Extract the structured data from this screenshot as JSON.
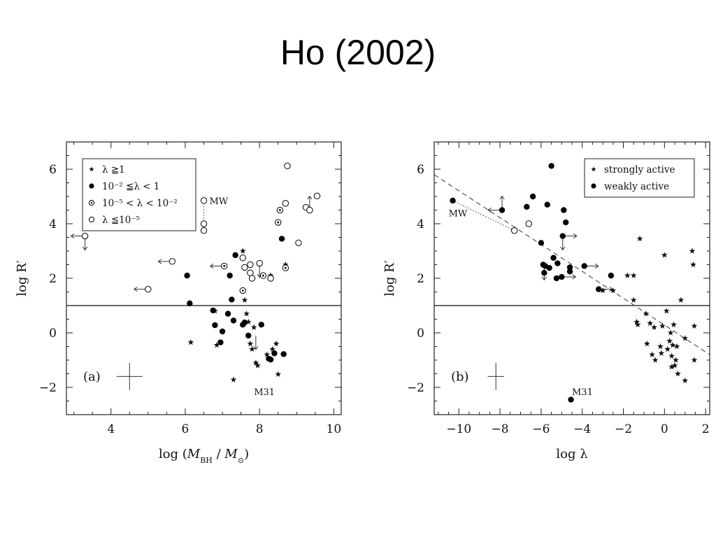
{
  "slide": {
    "title": "Ho (2002)"
  },
  "chart_data": [
    {
      "type": "scatter",
      "panel_label": "(a)",
      "xlabel": "log (M_BH / M_⊙)",
      "ylabel": "log R′",
      "xlim": [
        2.8,
        10.2
      ],
      "ylim": [
        -3.0,
        7.0
      ],
      "xticks": [
        4,
        6,
        8,
        10
      ],
      "yticks": [
        -2,
        0,
        2,
        4,
        6
      ],
      "reference_line_y": 1,
      "legend": {
        "placement": "top-left",
        "entries": [
          {
            "marker": "star",
            "label": "λ ≧1"
          },
          {
            "marker": "filled",
            "label": "10⁻² ≦λ < 1"
          },
          {
            "marker": "dotted",
            "label": "10⁻⁵ < λ < 10⁻²"
          },
          {
            "marker": "open",
            "label": "λ ≦10⁻⁵"
          }
        ]
      },
      "annotations": [
        {
          "text": "MW",
          "x": 6.65,
          "y": 4.85
        },
        {
          "text": "M31",
          "x": 7.85,
          "y": -2.15
        }
      ],
      "error_bar": {
        "x": 4.5,
        "y": -1.6,
        "dx": 0.35,
        "dy": 0.5
      },
      "connectors": [
        {
          "x1": 6.5,
          "y1": 4.85,
          "x2": 6.5,
          "y2": 4.0
        }
      ],
      "series": [
        {
          "marker": "star",
          "points": [
            [
              6.15,
              -0.35
            ],
            [
              6.8,
              0.8
            ],
            [
              6.85,
              -0.45
            ],
            [
              7.55,
              3.0
            ],
            [
              7.6,
              1.2
            ],
            [
              7.65,
              0.7
            ],
            [
              7.7,
              0.4
            ],
            [
              7.75,
              -0.4
            ],
            [
              7.8,
              -0.6
            ],
            [
              7.85,
              0.2
            ],
            [
              7.9,
              -1.1
            ],
            [
              7.95,
              -1.2
            ],
            [
              7.3,
              -1.72
            ],
            [
              8.2,
              -0.8
            ],
            [
              8.35,
              -0.6
            ],
            [
              8.45,
              -0.4
            ],
            [
              8.5,
              -1.52
            ],
            [
              8.3,
              2.1
            ],
            [
              8.7,
              2.5
            ]
          ]
        },
        {
          "marker": "filled",
          "points": [
            [
              6.05,
              2.1
            ],
            [
              6.12,
              1.08
            ],
            [
              6.75,
              0.82
            ],
            [
              6.8,
              0.28
            ],
            [
              6.95,
              -0.35
            ],
            [
              7.0,
              0.05
            ],
            [
              7.15,
              0.7
            ],
            [
              7.2,
              2.1
            ],
            [
              7.25,
              1.22
            ],
            [
              7.3,
              0.45
            ],
            [
              7.35,
              2.85
            ],
            [
              7.55,
              0.3
            ],
            [
              7.6,
              0.38
            ],
            [
              7.7,
              -0.1
            ],
            [
              8.05,
              0.3
            ],
            [
              8.25,
              -0.95
            ],
            [
              8.3,
              -0.98
            ],
            [
              8.4,
              -0.75
            ],
            [
              8.6,
              3.45
            ],
            [
              8.65,
              -0.78
            ]
          ]
        },
        {
          "marker": "dotted",
          "points": [
            [
              7.05,
              2.45
            ],
            [
              7.55,
              1.55
            ],
            [
              8.1,
              2.1
            ],
            [
              8.5,
              4.05
            ],
            [
              8.55,
              4.5
            ],
            [
              8.7,
              2.38
            ]
          ]
        },
        {
          "marker": "open",
          "points": [
            [
              3.3,
              3.55
            ],
            [
              5.0,
              1.6
            ],
            [
              5.65,
              2.62
            ],
            [
              6.5,
              4.85
            ],
            [
              6.5,
              4.0
            ],
            [
              6.5,
              3.75
            ],
            [
              7.55,
              2.75
            ],
            [
              7.6,
              2.4
            ],
            [
              7.75,
              2.2
            ],
            [
              7.8,
              2.0
            ],
            [
              7.75,
              2.5
            ],
            [
              8.0,
              2.55
            ],
            [
              8.3,
              2.0
            ],
            [
              8.7,
              4.75
            ],
            [
              8.75,
              6.12
            ],
            [
              9.05,
              3.3
            ],
            [
              9.25,
              4.6
            ],
            [
              9.35,
              4.5
            ],
            [
              9.55,
              5.02
            ]
          ]
        }
      ],
      "limit_arrows": [
        {
          "x": 3.3,
          "y": 3.55,
          "dir": "left"
        },
        {
          "x": 3.3,
          "y": 3.55,
          "dir": "down"
        },
        {
          "x": 5.0,
          "y": 1.6,
          "dir": "left"
        },
        {
          "x": 5.65,
          "y": 2.62,
          "dir": "left"
        },
        {
          "x": 7.05,
          "y": 2.45,
          "dir": "left"
        },
        {
          "x": 7.9,
          "y": -0.1,
          "dir": "down"
        },
        {
          "x": 8.0,
          "y": 2.55,
          "dir": "down"
        },
        {
          "x": 9.35,
          "y": 4.5,
          "dir": "up"
        }
      ]
    },
    {
      "type": "scatter",
      "panel_label": "(b)",
      "xlabel": "log λ",
      "ylabel": "log R′",
      "xlim": [
        -11.2,
        2.2
      ],
      "ylim": [
        -3.0,
        7.0
      ],
      "xticks": [
        -10,
        -8,
        -6,
        -4,
        -2,
        0,
        2
      ],
      "yticks": [
        -2,
        0,
        2,
        4,
        6
      ],
      "reference_line_y": 1,
      "fit_line": {
        "x1": -11.2,
        "y1": 5.8,
        "x2": 2.2,
        "y2": -0.8
      },
      "legend": {
        "placement": "top-right",
        "entries": [
          {
            "marker": "star",
            "label": "strongly active"
          },
          {
            "marker": "filled",
            "label": "weakly active"
          }
        ]
      },
      "annotations": [
        {
          "text": "MW",
          "x": -10.5,
          "y": 4.4
        },
        {
          "text": "M31",
          "x": -4.5,
          "y": -2.15
        }
      ],
      "error_bar": {
        "x": -8.2,
        "y": -1.6,
        "dx": 0.4,
        "dy": 0.5
      },
      "connectors": [
        {
          "x1": -10.3,
          "y1": 4.85,
          "x2": -7.3,
          "y2": 3.75
        }
      ],
      "series": [
        {
          "marker": "star",
          "points": [
            [
              -3.0,
              1.55
            ],
            [
              -2.5,
              1.55
            ],
            [
              -1.8,
              2.1
            ],
            [
              -1.5,
              2.1
            ],
            [
              -1.5,
              1.2
            ],
            [
              -1.35,
              0.4
            ],
            [
              -1.3,
              0.3
            ],
            [
              -1.2,
              3.45
            ],
            [
              -0.9,
              0.7
            ],
            [
              -0.85,
              -0.4
            ],
            [
              -0.7,
              0.35
            ],
            [
              -0.6,
              -0.8
            ],
            [
              -0.5,
              0.2
            ],
            [
              -0.45,
              -1.0
            ],
            [
              -0.2,
              -0.5
            ],
            [
              -0.15,
              -0.75
            ],
            [
              -0.1,
              0.25
            ],
            [
              0.0,
              2.85
            ],
            [
              0.1,
              0.8
            ],
            [
              0.15,
              -0.6
            ],
            [
              0.25,
              -0.3
            ],
            [
              0.3,
              0.0
            ],
            [
              0.35,
              -0.85
            ],
            [
              0.35,
              -1.25
            ],
            [
              0.4,
              -0.45
            ],
            [
              0.45,
              0.3
            ],
            [
              0.5,
              -1.2
            ],
            [
              0.55,
              -1.0
            ],
            [
              0.6,
              -0.5
            ],
            [
              0.65,
              -1.5
            ],
            [
              0.8,
              1.2
            ],
            [
              1.0,
              -0.2
            ],
            [
              1.0,
              -1.75
            ],
            [
              1.35,
              3.0
            ],
            [
              1.4,
              2.5
            ],
            [
              1.45,
              0.25
            ],
            [
              1.45,
              -1.0
            ]
          ]
        },
        {
          "marker": "filled",
          "points": [
            [
              -10.3,
              4.85
            ],
            [
              -7.9,
              4.5
            ],
            [
              -6.7,
              4.62
            ],
            [
              -6.4,
              5.0
            ],
            [
              -6.0,
              3.3
            ],
            [
              -5.9,
              2.5
            ],
            [
              -5.85,
              2.2
            ],
            [
              -5.8,
              2.45
            ],
            [
              -5.7,
              4.7
            ],
            [
              -5.6,
              2.38
            ],
            [
              -5.5,
              6.12
            ],
            [
              -5.4,
              2.75
            ],
            [
              -5.25,
              2.0
            ],
            [
              -5.2,
              2.55
            ],
            [
              -5.0,
              2.05
            ],
            [
              -4.95,
              3.55
            ],
            [
              -4.9,
              4.5
            ],
            [
              -4.8,
              4.05
            ],
            [
              -4.6,
              2.4
            ],
            [
              -4.6,
              2.25
            ],
            [
              -3.9,
              2.45
            ],
            [
              -3.2,
              1.6
            ],
            [
              -2.6,
              2.1
            ],
            [
              -4.55,
              -2.45
            ]
          ]
        },
        {
          "marker": "open",
          "points": [
            [
              -7.3,
              3.75
            ],
            [
              -6.6,
              4.0
            ]
          ]
        }
      ],
      "limit_arrows": [
        {
          "x": -7.9,
          "y": 4.5,
          "dir": "left"
        },
        {
          "x": -7.9,
          "y": 4.5,
          "dir": "up"
        },
        {
          "x": -5.85,
          "y": 2.45,
          "dir": "down"
        },
        {
          "x": -4.95,
          "y": 3.55,
          "dir": "right"
        },
        {
          "x": -4.95,
          "y": 3.55,
          "dir": "down"
        },
        {
          "x": -5.0,
          "y": 2.05,
          "dir": "right"
        },
        {
          "x": -3.9,
          "y": 2.45,
          "dir": "right"
        },
        {
          "x": -3.2,
          "y": 1.6,
          "dir": "right"
        }
      ]
    }
  ]
}
